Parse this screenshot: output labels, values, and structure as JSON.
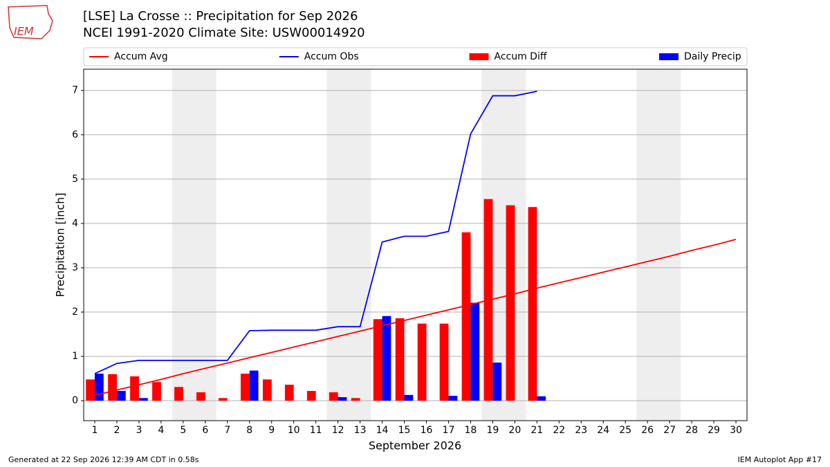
{
  "logo_text": "IEM",
  "footer_left": "Generated at 22 Sep 2026 12:39 AM CDT in 0.58s",
  "footer_right": "IEM Autoplot App #17",
  "chart_data": {
    "type": "bar",
    "title": "[LSE] La Crosse :: Precipitation for Sep 2026",
    "subtitle": "NCEI 1991-2020 Climate Site: USW00014920",
    "xlabel": "September 2026",
    "ylabel": "Precipitation [inch]",
    "x": [
      1,
      2,
      3,
      4,
      5,
      6,
      7,
      8,
      9,
      10,
      11,
      12,
      13,
      14,
      15,
      16,
      17,
      18,
      19,
      20,
      21,
      22,
      23,
      24,
      25,
      26,
      27,
      28,
      29,
      30
    ],
    "xlim": [
      0.5,
      30.5
    ],
    "xticks": [
      1,
      2,
      3,
      4,
      5,
      6,
      7,
      8,
      9,
      10,
      11,
      12,
      13,
      14,
      15,
      16,
      17,
      18,
      19,
      20,
      21,
      22,
      23,
      24,
      25,
      26,
      27,
      28,
      29,
      30
    ],
    "ylim": [
      -0.45,
      7.48
    ],
    "yticks": [
      0,
      1,
      2,
      3,
      4,
      5,
      6,
      7
    ],
    "grid": true,
    "legend": "top",
    "shaded_ranges": [
      [
        4.5,
        6.5
      ],
      [
        11.5,
        13.5
      ],
      [
        18.5,
        20.5
      ],
      [
        25.5,
        27.5
      ]
    ],
    "shade_color": "#eeeeee",
    "series": [
      {
        "name": "Accum Avg",
        "type": "line",
        "color": "#ff0000",
        "values": [
          0.12,
          0.24,
          0.36,
          0.48,
          0.61,
          0.73,
          0.85,
          0.97,
          1.09,
          1.21,
          1.33,
          1.45,
          1.57,
          1.69,
          1.81,
          1.93,
          2.05,
          2.17,
          2.29,
          2.41,
          2.54,
          2.66,
          2.78,
          2.9,
          3.02,
          3.14,
          3.26,
          3.39,
          3.51,
          3.64
        ]
      },
      {
        "name": "Accum Obs",
        "type": "line",
        "color": "#0000ff",
        "values": [
          0.61,
          0.84,
          0.91,
          0.91,
          0.91,
          0.91,
          0.91,
          1.58,
          1.59,
          1.59,
          1.59,
          1.67,
          1.67,
          3.58,
          3.71,
          3.71,
          3.82,
          6.02,
          6.88,
          6.88,
          6.98,
          null,
          null,
          null,
          null,
          null,
          null,
          null,
          null,
          null
        ]
      },
      {
        "name": "Accum Diff",
        "type": "bar",
        "color": "#ff0000",
        "values": [
          0.48,
          0.6,
          0.55,
          0.42,
          0.31,
          0.19,
          0.06,
          0.61,
          0.48,
          0.36,
          0.22,
          0.19,
          0.06,
          1.84,
          1.86,
          1.74,
          1.74,
          3.8,
          4.55,
          4.41,
          4.37,
          null,
          null,
          null,
          null,
          null,
          null,
          null,
          null,
          null
        ]
      },
      {
        "name": "Daily Precip",
        "type": "bar",
        "color": "#0000ff",
        "values": [
          0.61,
          0.22,
          0.06,
          0,
          0,
          0,
          0,
          0.68,
          0,
          0,
          0,
          0.08,
          0,
          1.91,
          0.13,
          0,
          0.11,
          2.21,
          0.86,
          0,
          0.1,
          null,
          null,
          null,
          null,
          null,
          null,
          null,
          null,
          null
        ]
      }
    ]
  }
}
